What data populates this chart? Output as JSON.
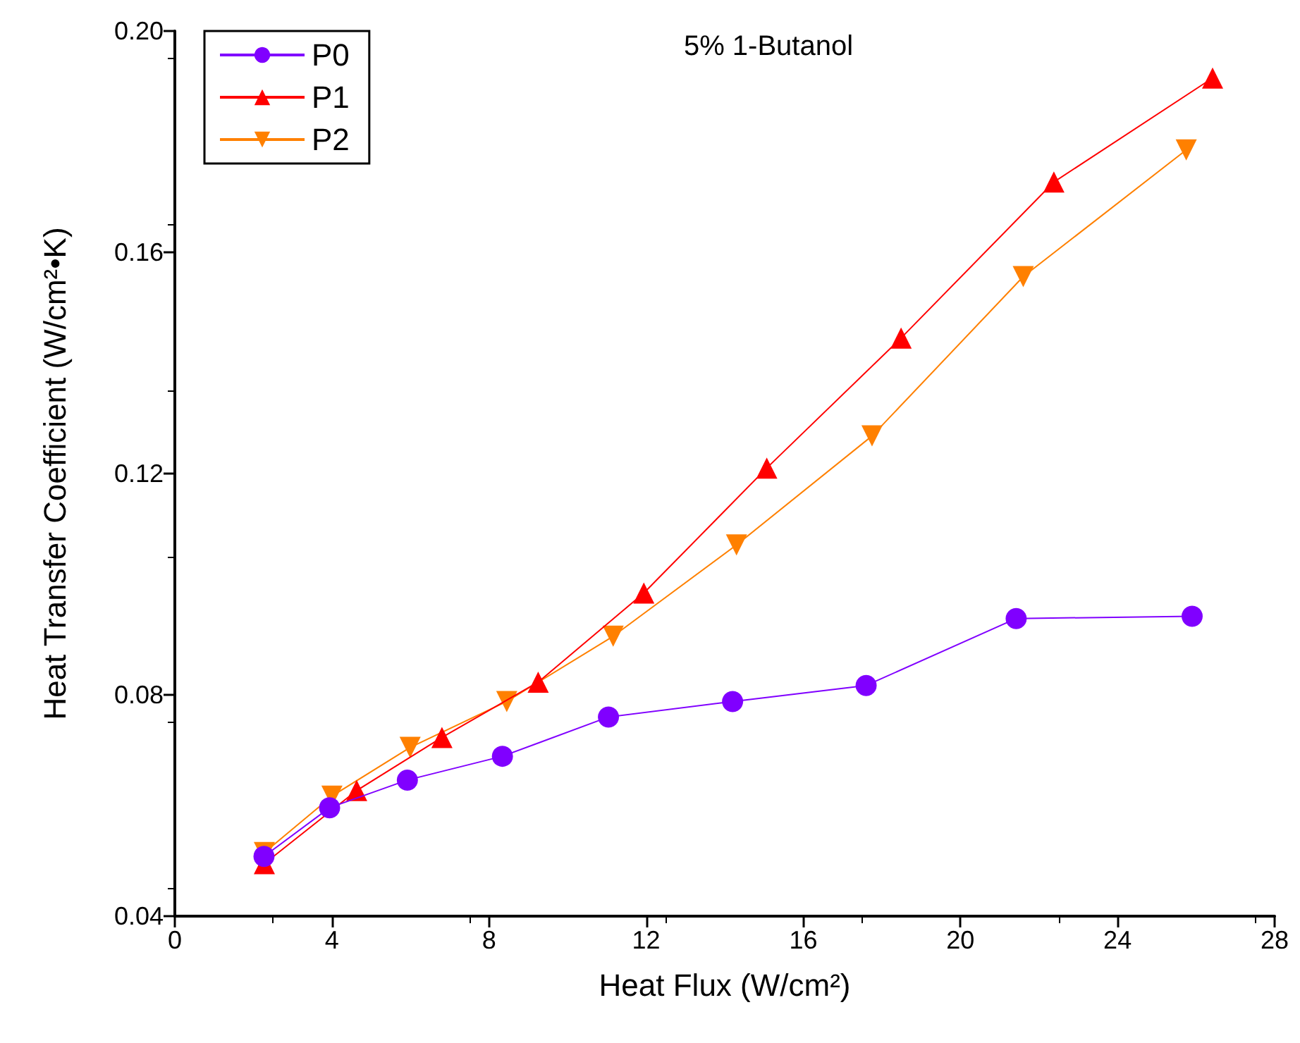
{
  "chart_data": {
    "type": "line",
    "title": "5% 1-Butanol",
    "xlabel": "Heat Flux (W/cm²)",
    "ylabel": "Heat Transfer Coefficient (W/cm²•K)",
    "xlim": [
      0,
      28
    ],
    "xticks": [
      0,
      4,
      8,
      12,
      16,
      20,
      24,
      28
    ],
    "ylim": [
      0.04,
      0.2
    ],
    "yticks": [
      0.04,
      0.08,
      0.12,
      0.16,
      {
        "value": 0.2,
        "label": "0.20"
      }
    ],
    "grid": false,
    "legend": "top left",
    "series": [
      {
        "name": "P0",
        "color": "#8000ff",
        "marker": "circle",
        "x": [
          2.27,
          3.94,
          5.92,
          8.34,
          11.04,
          14.2,
          17.6,
          21.42,
          25.9
        ],
        "values": [
          0.0508,
          0.0596,
          0.0646,
          0.0689,
          0.076,
          0.0788,
          0.0817,
          0.0938,
          0.0942
        ]
      },
      {
        "name": "P1",
        "color": "#ff0000",
        "marker": "triangle",
        "x": [
          2.28,
          4.63,
          6.8,
          9.25,
          11.94,
          15.07,
          18.49,
          22.38,
          26.42
        ],
        "values": [
          0.0495,
          0.0627,
          0.0723,
          0.0823,
          0.0984,
          0.121,
          0.1445,
          0.1727,
          0.1915
        ]
      },
      {
        "name": "P2",
        "color": "#ff8000",
        "marker": "triangle-down",
        "x": [
          2.28,
          4.0,
          5.99,
          8.45,
          11.16,
          14.3,
          17.75,
          21.6,
          25.75
        ],
        "values": [
          0.0515,
          0.0617,
          0.0705,
          0.0788,
          0.0906,
          0.1071,
          0.1268,
          0.1556,
          0.1785
        ]
      }
    ]
  }
}
